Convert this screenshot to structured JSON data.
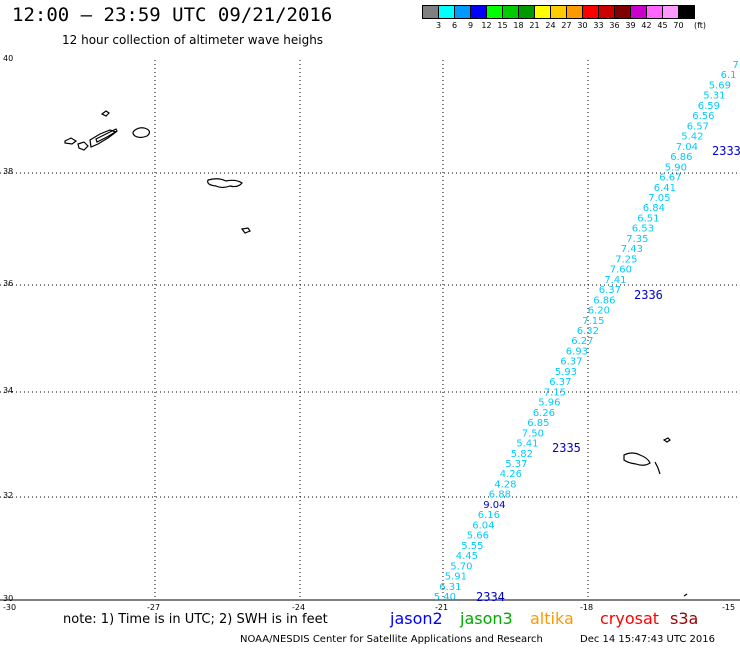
{
  "header": {
    "title": "12:00 – 23:59 UTC 09/21/2016",
    "subtitle": "12 hour collection of altimeter wave heighs"
  },
  "legend": {
    "unit": "(ft)",
    "labels": [
      "3",
      "6",
      "9",
      "12",
      "15",
      "18",
      "21",
      "24",
      "27",
      "30",
      "33",
      "36",
      "39",
      "42",
      "45",
      "70"
    ],
    "colors": [
      "#808080",
      "#00ffff",
      "#0099ff",
      "#0000ff",
      "#00ff00",
      "#00cc00",
      "#009900",
      "#ffff00",
      "#ffcc00",
      "#ff9900",
      "#ff0000",
      "#cc0000",
      "#800000",
      "#cc00cc",
      "#ff66ff",
      "#ff99ff",
      "#000000"
    ]
  },
  "axes": {
    "y_labels": [
      "40",
      "38",
      "36",
      "34",
      "32",
      "30"
    ],
    "x_labels": [
      "-30",
      "-27",
      "-24",
      "-21",
      "-18",
      "-15"
    ]
  },
  "track": {
    "values": [
      "7.",
      "6.1",
      "5.69",
      "5.31",
      "6.59",
      "6.56",
      "6.57",
      "5.42",
      "7.04",
      "6.86",
      "5.90",
      "6.67",
      "6.41",
      "7.05",
      "6.84",
      "6.51",
      "6.53",
      "7.35",
      "7.43",
      "7.25",
      "7.60",
      "7.41",
      "6.37",
      "6.86",
      "6.20",
      "7.15",
      "6.32",
      "6.27",
      "6.93",
      "6.37",
      "5.93",
      "6.37",
      "7.15",
      "5.96",
      "6.26",
      "6.85",
      "7.50",
      "5.41",
      "5.82",
      "5.37",
      "4.26",
      "4.28",
      "6.88",
      "9.04",
      "6.16",
      "6.04",
      "5.66",
      "5.55",
      "4.45",
      "5.70",
      "5.91",
      "6.31",
      "5.40"
    ],
    "highlight_value": "9.04",
    "cycle_labels": [
      "2333",
      "2336",
      "2335",
      "2334"
    ]
  },
  "note": {
    "text": "note: 1) Time is in UTC; 2) SWH is in feet"
  },
  "satellites": [
    {
      "name": "jason2",
      "color": "#0000ff"
    },
    {
      "name": "jason3",
      "color": "#00aa00"
    },
    {
      "name": "altika",
      "color": "#ff9900"
    },
    {
      "name": "cryosat",
      "color": "#ff0000"
    },
    {
      "name": "s3a",
      "color": "#990000"
    }
  ],
  "footer": {
    "org": "NOAA/NESDIS Center for Satellite Applications and Research",
    "timestamp": "Dec 14 15:47:43 UTC 2016"
  }
}
